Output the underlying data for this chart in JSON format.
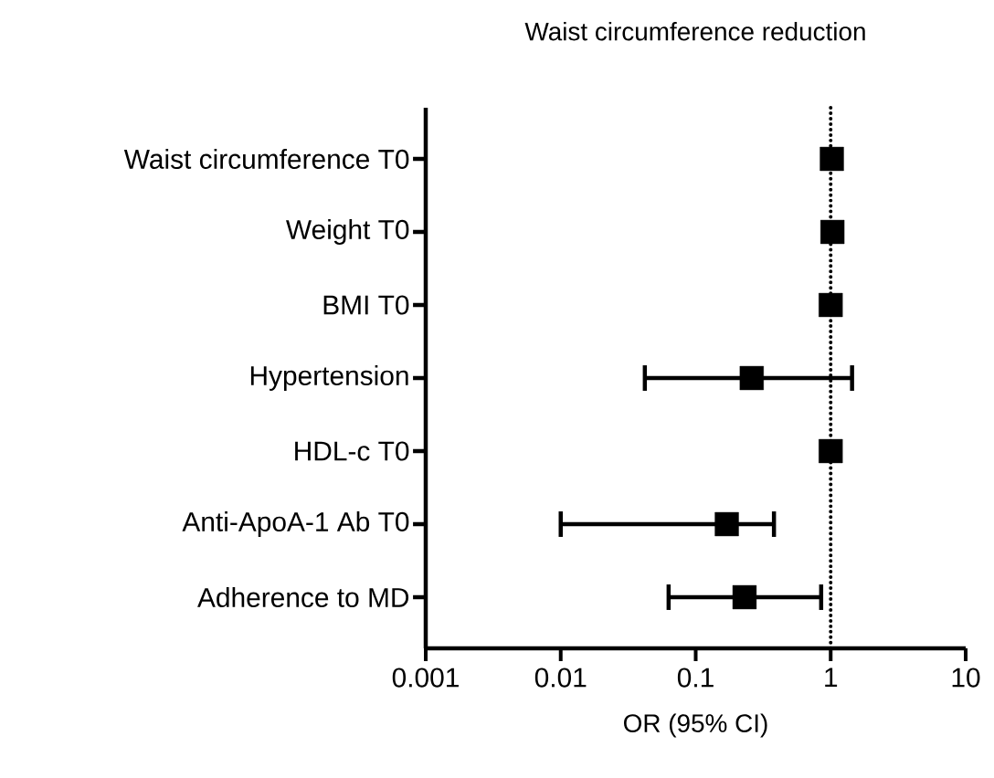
{
  "chart_data": {
    "type": "scatter",
    "orientation": "horizontal",
    "title": "Waist circumference reduction",
    "xlabel": "OR (95% CI)",
    "categories": [
      "Waist circumference T0",
      "Weight T0",
      "BMI T0",
      "Hypertension",
      "HDL-c T0",
      "Anti-ApoA-1 Ab T0",
      "Adherence to MD"
    ],
    "series": [
      {
        "color": "#000000",
        "values": [
          1.02,
          1.03,
          1.0,
          0.26,
          1.0,
          0.17,
          0.23
        ],
        "errors": [
          null,
          null,
          null,
          [
            0.042,
            1.44
          ],
          null,
          [
            0.01,
            0.38
          ],
          [
            0.063,
            0.85
          ]
        ]
      }
    ],
    "log": "x",
    "xlim": [
      0.001,
      10
    ],
    "xticks": [
      0.001,
      0.01,
      0.1,
      1,
      10
    ],
    "ref_lines": [
      {
        "axis": "x",
        "value": 1,
        "line_style": "dotted"
      }
    ],
    "marker": "square",
    "grid": false
  }
}
